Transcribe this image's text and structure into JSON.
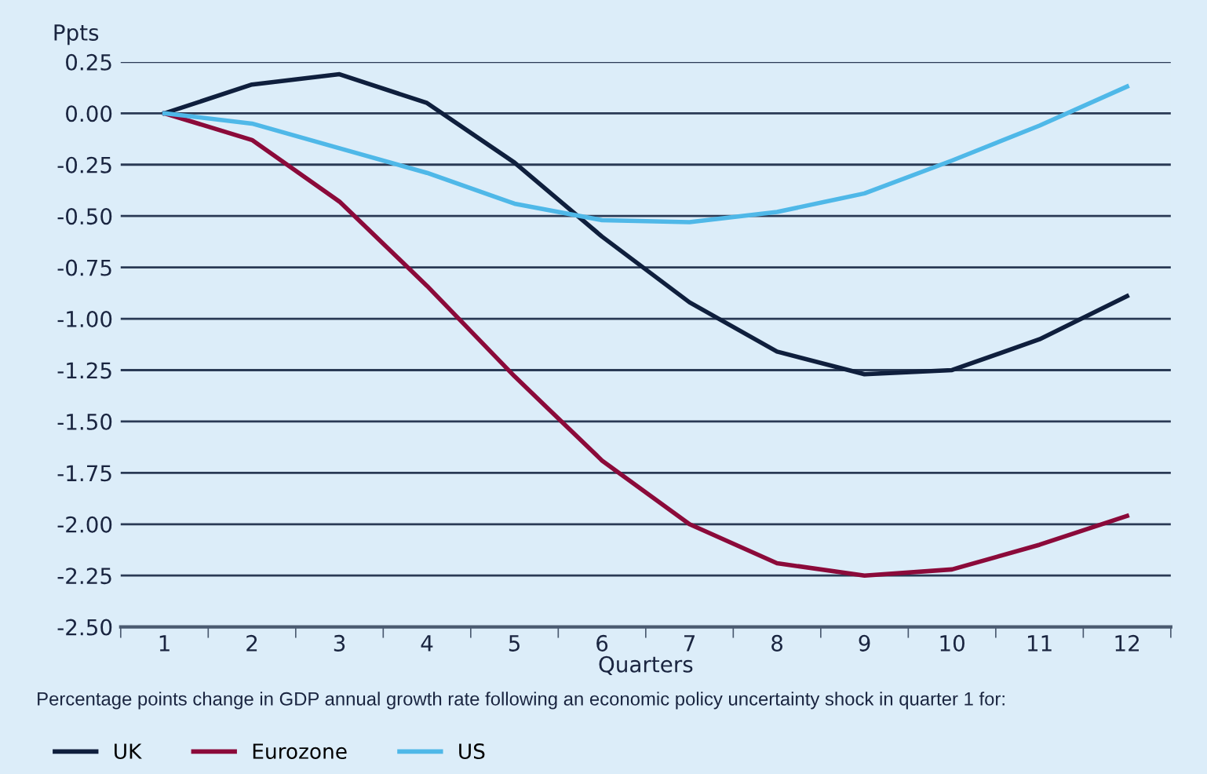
{
  "chart_data": {
    "type": "line",
    "ylabel": "Ppts",
    "xlabel": "Quarters",
    "annotations": [
      "Percentage points change in GDP annual growth rate following an economic policy uncertainty shock in quarter 1 for:"
    ],
    "categories": [
      "1",
      "2",
      "3",
      "4",
      "5",
      "6",
      "7",
      "8",
      "9",
      "10",
      "11",
      "12"
    ],
    "series": [
      {
        "name": "UK",
        "color": "#0f1f3d",
        "values": [
          0,
          0.14,
          0.19,
          0.05,
          -0.24,
          -0.6,
          -0.92,
          -1.16,
          -1.27,
          -1.25,
          -1.1,
          -0.89
        ]
      },
      {
        "name": "Eurozone",
        "color": "#8b0a3a",
        "values": [
          0,
          -0.13,
          -0.43,
          -0.84,
          -1.28,
          -1.69,
          -2.0,
          -2.19,
          -2.25,
          -2.22,
          -2.1,
          -1.96
        ]
      },
      {
        "name": "US",
        "color": "#4fb8e8",
        "values": [
          0,
          -0.05,
          -0.17,
          -0.29,
          -0.44,
          -0.52,
          -0.53,
          -0.48,
          -0.39,
          -0.23,
          -0.06,
          0.13
        ]
      }
    ],
    "ylim": [
      -2.5,
      0.25
    ],
    "yticks": [
      {
        "value": 0.25,
        "label": "0.25"
      },
      {
        "value": 0,
        "label": "0.00"
      },
      {
        "value": -0.25,
        "label": "-0.25"
      },
      {
        "value": -0.5,
        "label": "-0.50"
      },
      {
        "value": -0.75,
        "label": "-0.75"
      },
      {
        "value": -1,
        "label": "-1.00"
      },
      {
        "value": -1.25,
        "label": "-1.25"
      },
      {
        "value": -1.5,
        "label": "-1.50"
      },
      {
        "value": -1.75,
        "label": "-1.75"
      },
      {
        "value": -2,
        "label": "-2.00"
      },
      {
        "value": -2.25,
        "label": "-2.25"
      },
      {
        "value": -2.5,
        "label": "-2.50"
      }
    ],
    "grid": "y",
    "legend": "bottom",
    "marker": "none",
    "line_style": "solid"
  }
}
